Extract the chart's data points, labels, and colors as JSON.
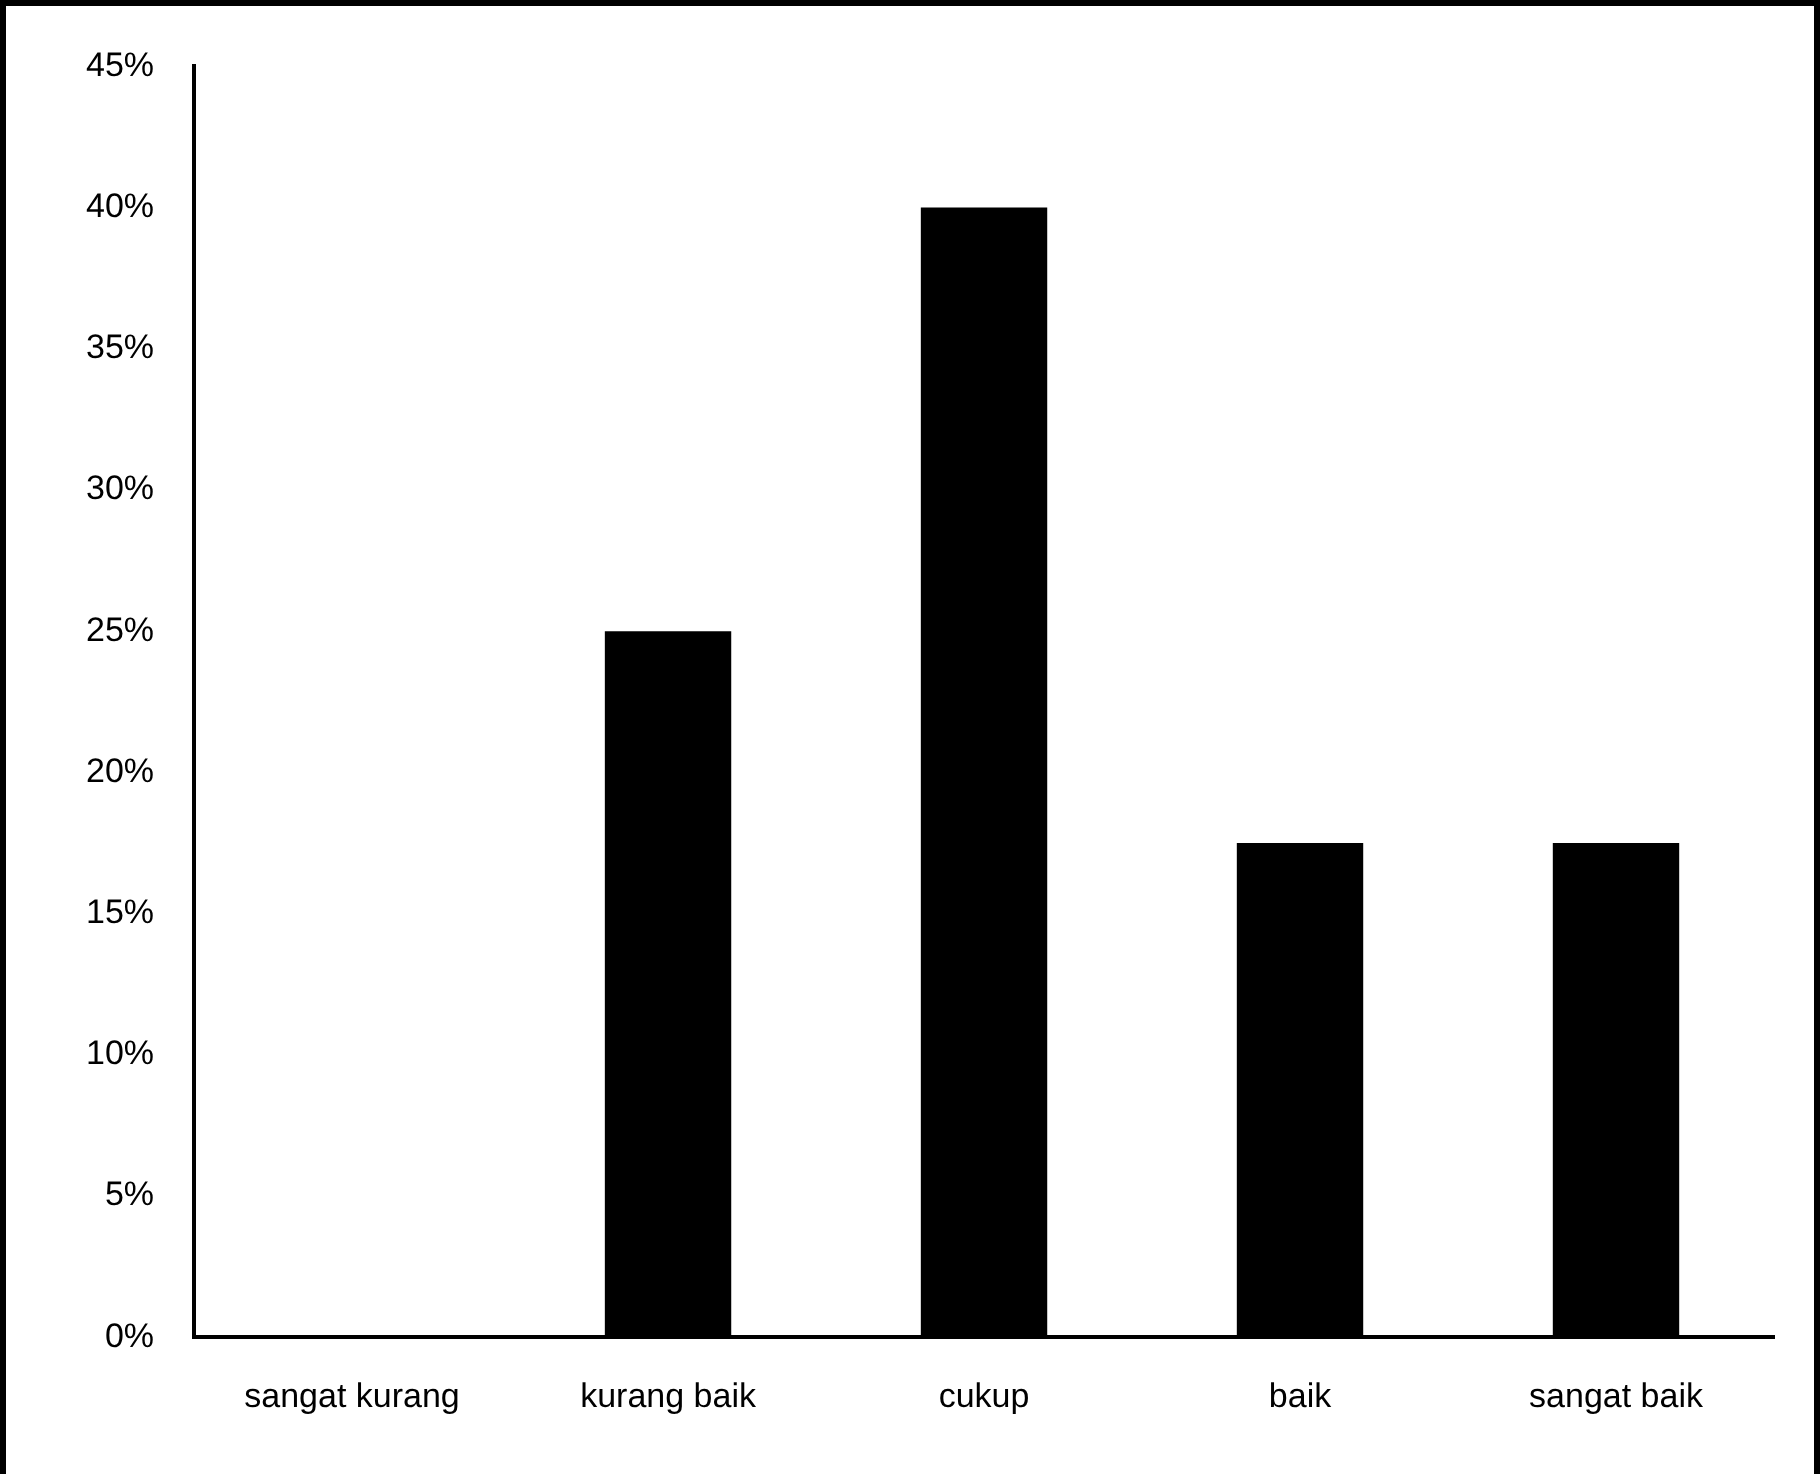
{
  "chart_data": {
    "type": "bar",
    "categories": [
      "sangat kurang",
      "kurang baik",
      "cukup",
      "baik",
      "sangat baik"
    ],
    "values": [
      0,
      25,
      40,
      17.5,
      17.5
    ],
    "color": "#000000",
    "ylim": [
      0,
      45
    ],
    "yticks": [
      {
        "value": 0,
        "label": "0%"
      },
      {
        "value": 5,
        "label": "5%"
      },
      {
        "value": 10,
        "label": "10%"
      },
      {
        "value": 15,
        "label": "15%"
      },
      {
        "value": 20,
        "label": "20%"
      },
      {
        "value": 25,
        "label": "25%"
      },
      {
        "value": 30,
        "label": "30%"
      },
      {
        "value": 35,
        "label": "35%"
      },
      {
        "value": 40,
        "label": "40%"
      },
      {
        "value": 45,
        "label": "45%"
      }
    ],
    "grid": false,
    "legend": false
  }
}
